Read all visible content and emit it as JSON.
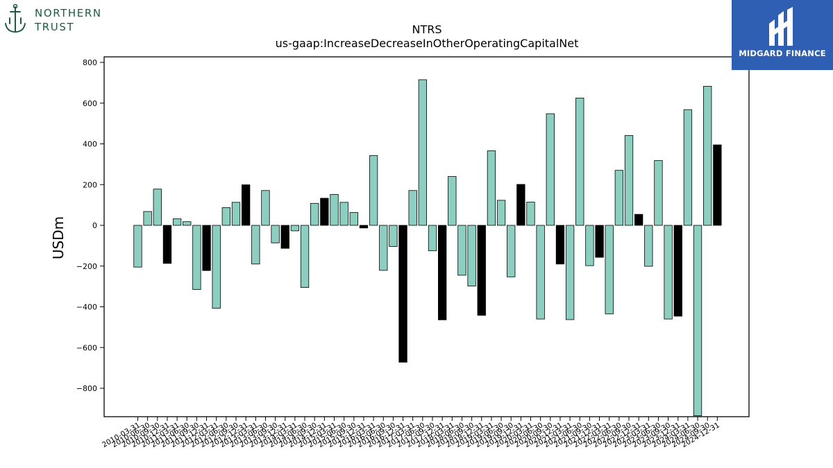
{
  "branding": {
    "left_logo": {
      "line1": "NORTHERN",
      "line2": "TRUST",
      "color": "#1e5a46",
      "icon": "anchor-trident-icon"
    },
    "right_logo": {
      "name": "MIDGARD FINANCE",
      "background": "#2f5fb3",
      "icon": "midgard-emblem-icon"
    }
  },
  "chart_data": {
    "type": "bar",
    "title": "NTRS",
    "subtitle": "us-gaap:IncreaseDecreaseInOtherOperatingCapitalNet",
    "xlabel": "",
    "ylabel": "USDm",
    "ylim": [
      -935,
      830
    ],
    "yticks": [
      -800,
      -600,
      -400,
      -200,
      0,
      200,
      400,
      600,
      800
    ],
    "grid": false,
    "legend": "none",
    "colors": {
      "quarter": "#8ccfc1",
      "year_end": "#000000"
    },
    "categories": [
      "2010-03-31",
      "2010-06-30",
      "2010-09-30",
      "2010-12-31",
      "2011-03-31",
      "2011-06-30",
      "2011-09-30",
      "2011-12-31",
      "2012-03-31",
      "2012-06-30",
      "2012-09-30",
      "2012-12-31",
      "2013-03-31",
      "2013-06-30",
      "2013-09-30",
      "2013-12-31",
      "2014-03-31",
      "2014-06-30",
      "2014-09-30",
      "2014-12-31",
      "2015-03-31",
      "2015-06-30",
      "2015-09-30",
      "2015-12-31",
      "2016-03-31",
      "2016-06-30",
      "2016-09-30",
      "2016-12-31",
      "2017-03-31",
      "2017-06-30",
      "2017-09-30",
      "2017-12-31",
      "2018-03-31",
      "2018-06-30",
      "2018-09-30",
      "2018-12-31",
      "2019-03-31",
      "2019-06-30",
      "2019-09-30",
      "2019-12-31",
      "2020-03-31",
      "2020-06-30",
      "2020-09-30",
      "2020-12-31",
      "2021-03-31",
      "2021-06-30",
      "2021-09-30",
      "2021-12-31",
      "2022-03-31",
      "2022-06-30",
      "2022-09-30",
      "2022-12-31",
      "2023-03-31",
      "2023-06-30",
      "2023-09-30",
      "2023-12-31",
      "2024-03-31",
      "2024-06-30",
      "2024-09-30",
      "2024-12-31"
    ],
    "values": [
      -205,
      68,
      178,
      -187,
      32,
      18,
      -315,
      -222,
      -407,
      87,
      113,
      199,
      -190,
      171,
      -86,
      -113,
      -27,
      -305,
      108,
      133,
      152,
      113,
      63,
      -13,
      343,
      -221,
      -104,
      -672,
      171,
      715,
      -125,
      -464,
      240,
      -245,
      -298,
      -442,
      366,
      123,
      -253,
      201,
      114,
      -460,
      548,
      -190,
      -463,
      625,
      -198,
      -157,
      -435,
      270,
      441,
      54,
      -201,
      318,
      -460,
      -446,
      568,
      -935,
      683,
      395
    ],
    "highlight": [
      false,
      false,
      false,
      true,
      false,
      false,
      false,
      true,
      false,
      false,
      false,
      true,
      false,
      false,
      false,
      true,
      false,
      false,
      false,
      true,
      false,
      false,
      false,
      true,
      false,
      false,
      false,
      true,
      false,
      false,
      false,
      true,
      false,
      false,
      false,
      true,
      false,
      false,
      false,
      true,
      false,
      false,
      false,
      true,
      false,
      false,
      false,
      true,
      false,
      false,
      false,
      true,
      false,
      false,
      false,
      true,
      false,
      false,
      false,
      true
    ]
  }
}
